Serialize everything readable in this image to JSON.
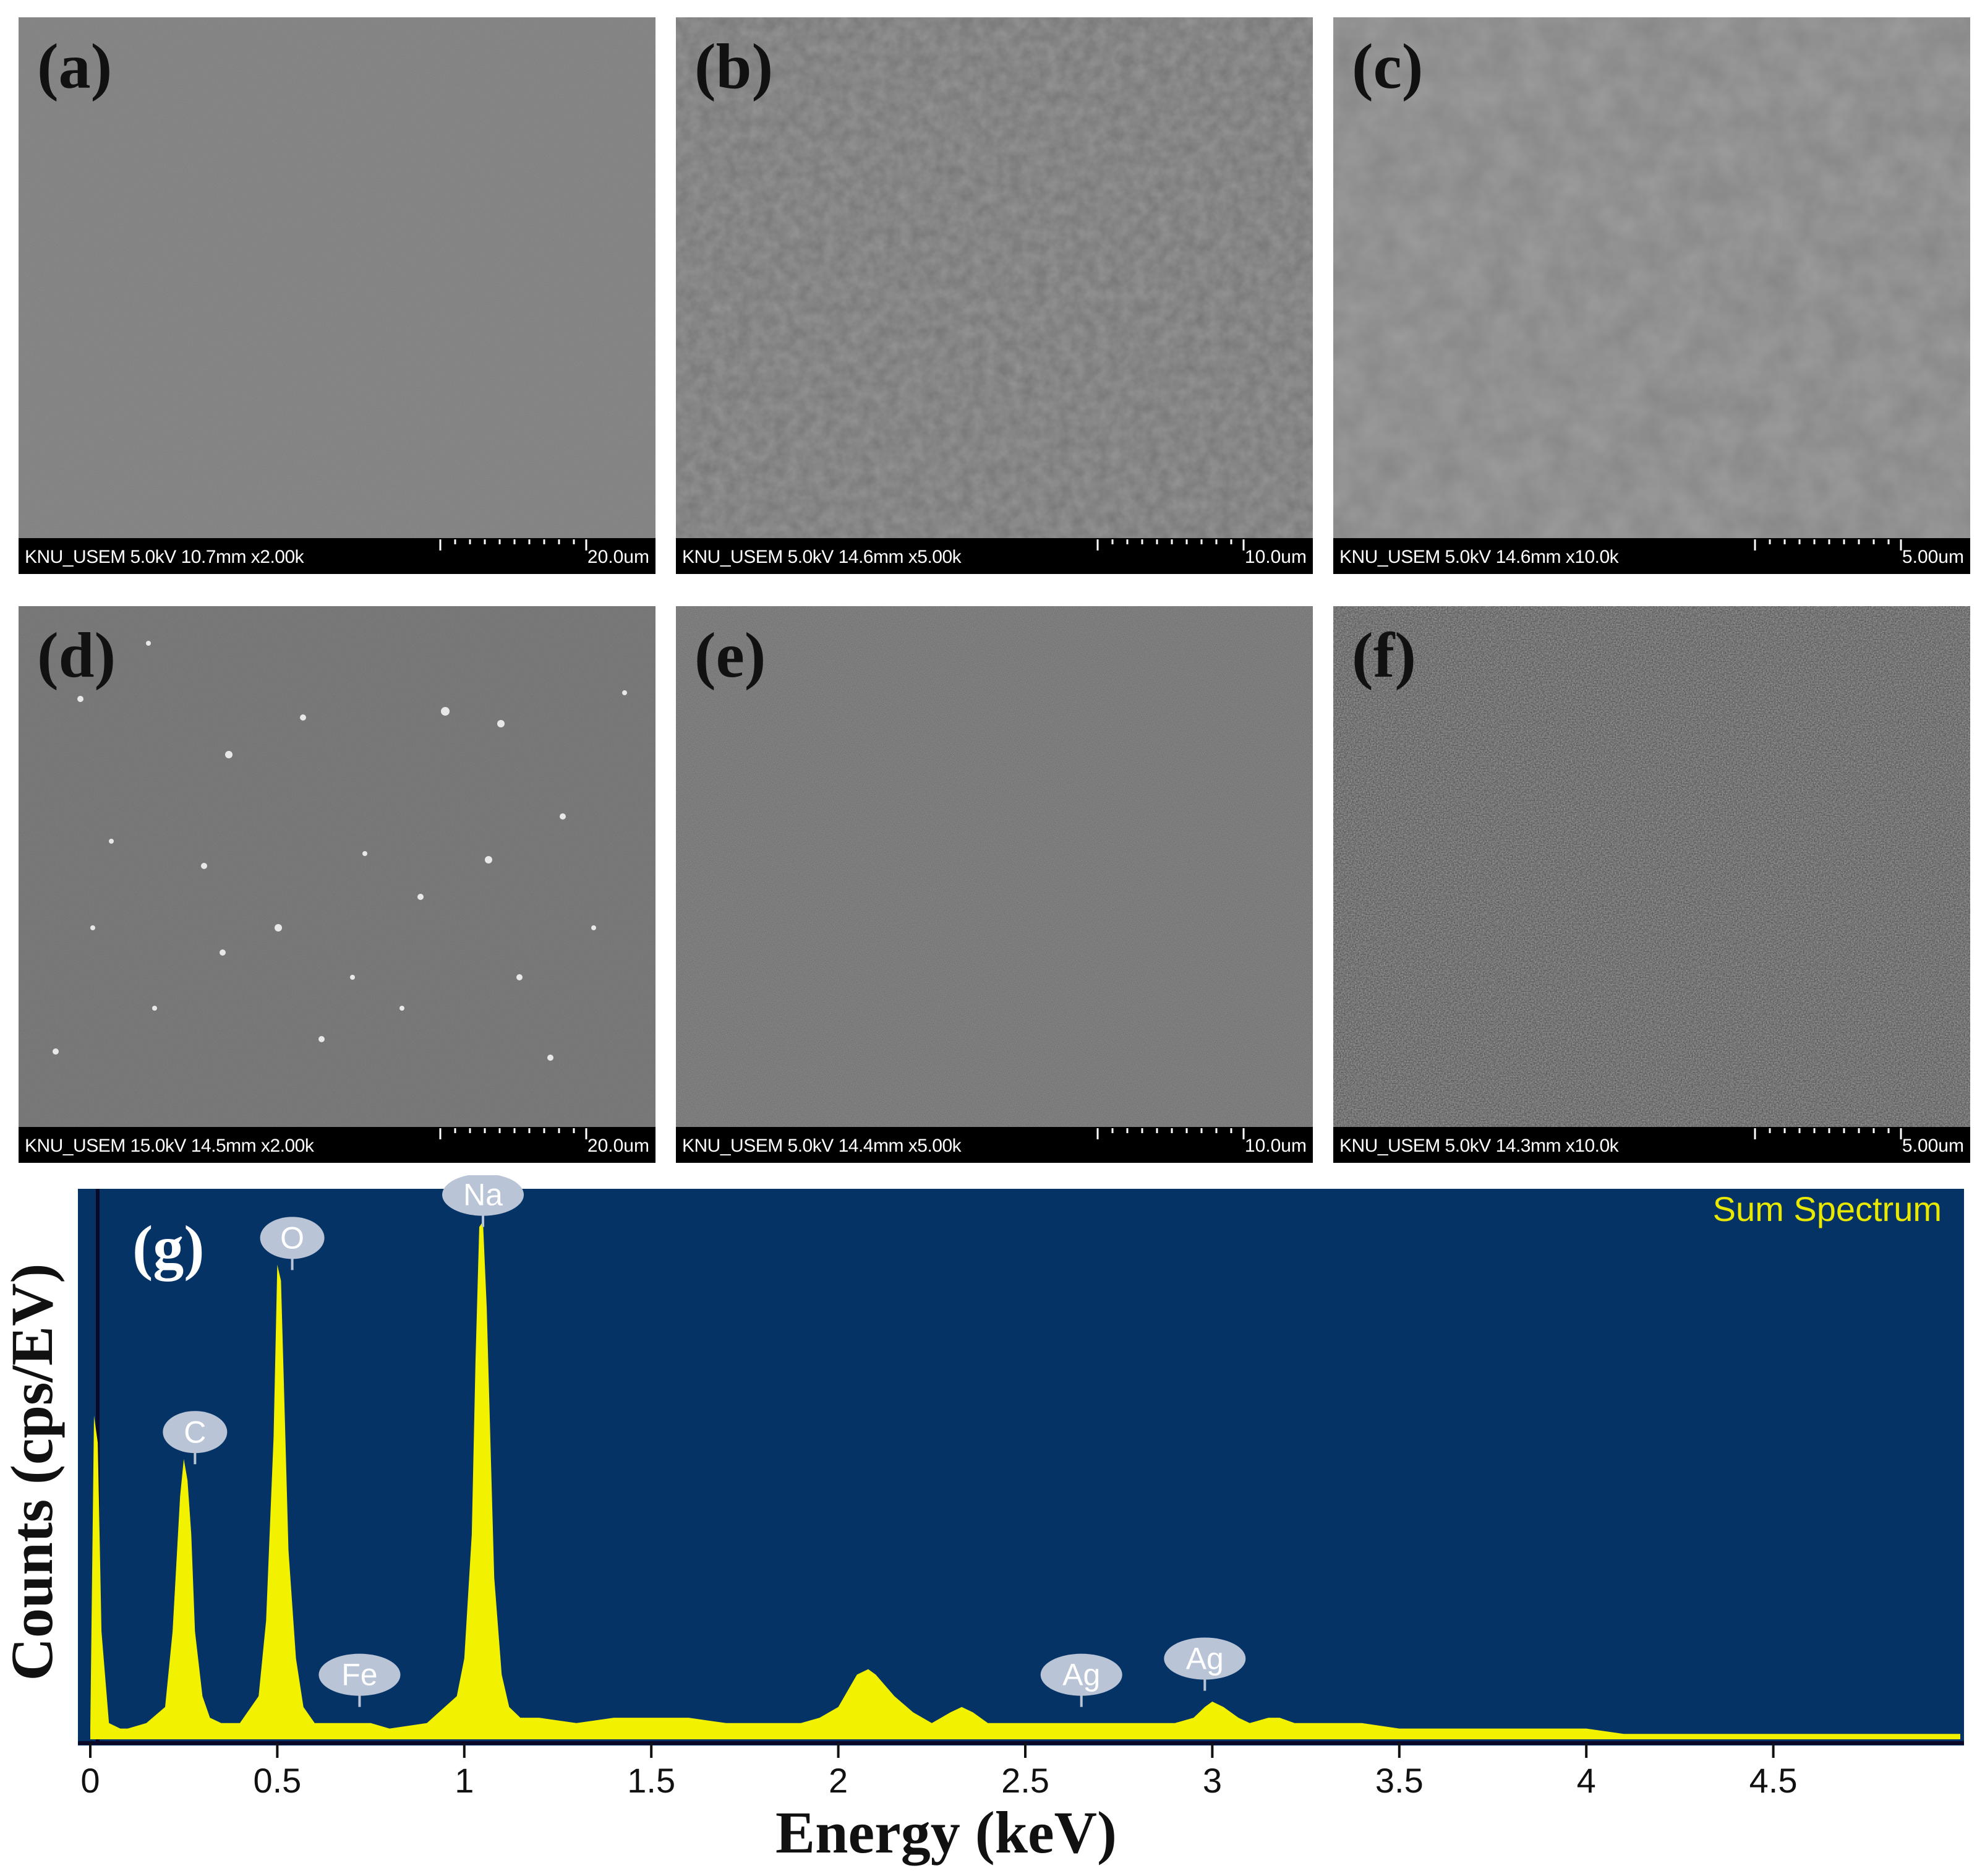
{
  "panels": [
    {
      "id": "a",
      "label": "(a)",
      "info": "KNU_USEM 5.0kV 10.7mm x2.00k",
      "scale": "20.0um"
    },
    {
      "id": "b",
      "label": "(b)",
      "info": "KNU_USEM 5.0kV 14.6mm x5.00k",
      "scale": "10.0um"
    },
    {
      "id": "c",
      "label": "(c)",
      "info": "KNU_USEM 5.0kV 14.6mm x10.0k",
      "scale": "5.00um"
    },
    {
      "id": "d",
      "label": "(d)",
      "info": "KNU_USEM 15.0kV 14.5mm x2.00k",
      "scale": "20.0um"
    },
    {
      "id": "e",
      "label": "(e)",
      "info": "KNU_USEM 5.0kV 14.4mm x5.00k",
      "scale": "10.0um"
    },
    {
      "id": "f",
      "label": "(f)",
      "info": "KNU_USEM 5.0kV 14.3mm x10.0k",
      "scale": "5.00um"
    }
  ],
  "chart_data": {
    "type": "area",
    "panel_label": "(g)",
    "legend": "Sum Spectrum",
    "xlabel": "Energy (keV)",
    "ylabel": "Counts (cps/EV)",
    "xlim": [
      0,
      5
    ],
    "ylim": [
      0,
      100
    ],
    "xticks": [
      0,
      0.5,
      1,
      1.5,
      2,
      2.5,
      3,
      3.5,
      4,
      4.5
    ],
    "xtick_labels": [
      "0",
      "0.5",
      "1",
      "1.5",
      "2",
      "2.5",
      "3",
      "3.5",
      "4",
      "4.5"
    ],
    "grid": false,
    "colors": {
      "background": "#063366",
      "fill": "#f2f200",
      "legend_text": "#e8e800",
      "marker": "#b9c4d6"
    },
    "series": [
      {
        "x": [
          0.0,
          0.01,
          0.02,
          0.03,
          0.05,
          0.08,
          0.1,
          0.15,
          0.2,
          0.22,
          0.24,
          0.25,
          0.26,
          0.27,
          0.28,
          0.3,
          0.32,
          0.35,
          0.4,
          0.45,
          0.47,
          0.49,
          0.5,
          0.51,
          0.52,
          0.53,
          0.55,
          0.57,
          0.6,
          0.65,
          0.7,
          0.75,
          0.8,
          0.9,
          0.98,
          1.0,
          1.02,
          1.03,
          1.04,
          1.05,
          1.06,
          1.07,
          1.08,
          1.1,
          1.12,
          1.15,
          1.2,
          1.3,
          1.4,
          1.5,
          1.6,
          1.7,
          1.8,
          1.9,
          1.95,
          2.0,
          2.05,
          2.08,
          2.1,
          2.15,
          2.2,
          2.25,
          2.3,
          2.33,
          2.36,
          2.4,
          2.5,
          2.6,
          2.7,
          2.8,
          2.9,
          2.95,
          2.98,
          3.0,
          3.03,
          3.07,
          3.1,
          3.15,
          3.18,
          3.22,
          3.3,
          3.4,
          3.5,
          3.6,
          3.7,
          3.8,
          3.9,
          3.95,
          4.0,
          4.1,
          4.5,
          5.0
        ],
        "y": [
          2,
          60,
          55,
          20,
          3,
          2,
          2,
          3,
          6,
          20,
          45,
          52,
          48,
          38,
          20,
          8,
          4,
          3,
          3,
          8,
          22,
          56,
          88,
          85,
          60,
          35,
          15,
          6,
          3,
          3,
          3,
          3,
          2,
          3,
          8,
          15,
          38,
          70,
          95,
          96,
          80,
          55,
          30,
          12,
          6,
          4,
          4,
          3,
          4,
          4,
          4,
          3,
          3,
          3,
          4,
          6,
          12,
          13,
          12,
          8,
          5,
          3,
          5,
          6,
          5,
          3,
          3,
          3,
          3,
          3,
          3,
          4,
          6,
          7,
          6,
          4,
          3,
          4,
          4,
          3,
          3,
          3,
          2,
          2,
          2,
          2,
          2,
          2,
          2,
          1,
          1,
          1
        ]
      }
    ],
    "annotations": [
      {
        "text": "C",
        "x": 0.28,
        "y": 51
      },
      {
        "text": "O",
        "x": 0.54,
        "y": 87
      },
      {
        "text": "Na",
        "x": 1.05,
        "y": 95
      },
      {
        "text": "Fe",
        "x": 0.72,
        "y": 6
      },
      {
        "text": "Ag",
        "x": 2.65,
        "y": 6
      },
      {
        "text": "Ag",
        "x": 2.98,
        "y": 9
      }
    ]
  }
}
